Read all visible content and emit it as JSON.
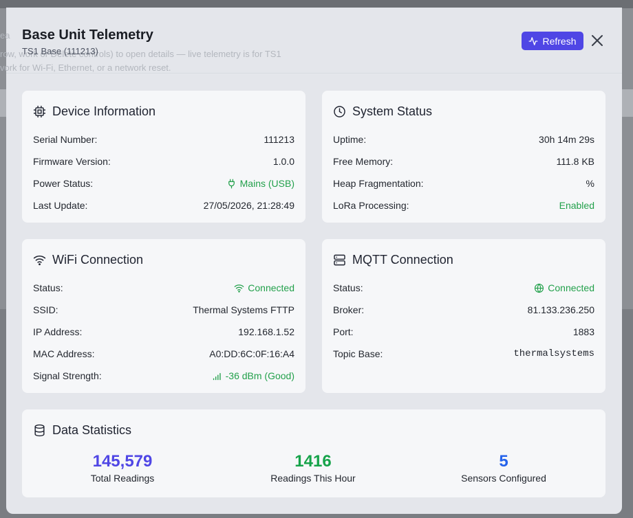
{
  "background": {
    "ghost_lines": [
      "ea",
      "row,                     work or Delete controls) to open details — live telemetry is for TS1",
      "vork for Wi-Fi, Ethernet, or a network reset."
    ]
  },
  "modal": {
    "title": "Base Unit Telemetry",
    "subtitle": "TS1 Base (111213)",
    "refresh_label": "Refresh"
  },
  "device_info": {
    "title": "Device Information",
    "rows": [
      {
        "label": "Serial Number:",
        "value": "111213"
      },
      {
        "label": "Firmware Version:",
        "value": "1.0.0"
      },
      {
        "label": "Power Status:",
        "value": "Mains (USB)"
      },
      {
        "label": "Last Update:",
        "value": "27/05/2026, 21:28:49"
      }
    ]
  },
  "system_status": {
    "title": "System Status",
    "rows": [
      {
        "label": "Uptime:",
        "value": "30h 14m 29s"
      },
      {
        "label": "Free Memory:",
        "value": "111.8 KB"
      },
      {
        "label": "Heap Fragmentation:",
        "value": "%"
      },
      {
        "label": "LoRa Processing:",
        "value": "Enabled"
      }
    ]
  },
  "wifi": {
    "title": "WiFi Connection",
    "rows": [
      {
        "label": "Status:",
        "value": "Connected"
      },
      {
        "label": "SSID:",
        "value": "Thermal Systems FTTP"
      },
      {
        "label": "IP Address:",
        "value": "192.168.1.52"
      },
      {
        "label": "MAC Address:",
        "value": "A0:DD:6C:0F:16:A4"
      },
      {
        "label": "Signal Strength:",
        "value": "-36 dBm (Good)"
      }
    ]
  },
  "mqtt": {
    "title": "MQTT Connection",
    "rows": [
      {
        "label": "Status:",
        "value": "Connected"
      },
      {
        "label": "Broker:",
        "value": "81.133.236.250"
      },
      {
        "label": "Port:",
        "value": "1883"
      },
      {
        "label": "Topic Base:",
        "value": "thermalsystems"
      }
    ]
  },
  "stats": {
    "title": "Data Statistics",
    "items": [
      {
        "value": "145,579",
        "label": "Total Readings",
        "color": "#4f46e5"
      },
      {
        "value": "1416",
        "label": "Readings This Hour",
        "color": "#16a34a"
      },
      {
        "value": "5",
        "label": "Sensors Configured",
        "color": "#2563eb"
      }
    ]
  },
  "colors": {
    "accent": "#4f46e5",
    "success": "#22a04b"
  }
}
